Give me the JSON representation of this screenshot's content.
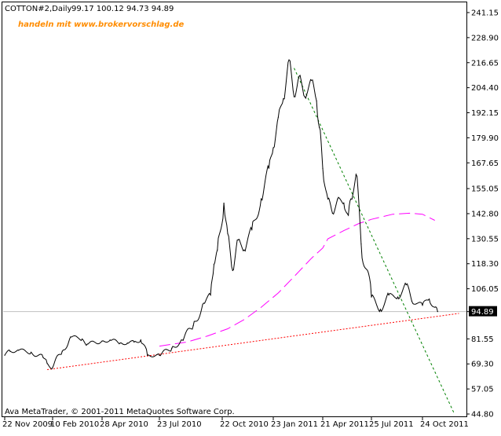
{
  "header": {
    "symbol_line": "COTTON#2,Daily",
    "ohlc_line": "99.17 100.12 94.73 94.89",
    "promo": "handeln mit www.brokervorschlag.de"
  },
  "footer": {
    "copyright": "Ava MetaTrader, © 2001-2011 MetaQuotes Software Corp."
  },
  "colors": {
    "background": "#ffffff",
    "price": "#000000",
    "grid": "#c0c0c0",
    "promo": "#ff8c00",
    "support": "#ff0000",
    "downtrend": "#008000",
    "moving_average": "#ff00ff",
    "current_price_line": "#c0c0c0"
  },
  "chart_data": {
    "type": "line",
    "title": "COTTON#2,Daily",
    "timeframe": "Daily",
    "ohlc_last": {
      "open": 99.17,
      "high": 100.12,
      "low": 94.73,
      "close": 94.89
    },
    "current_price": 94.89,
    "ylim": [
      44.8,
      241.15
    ],
    "y_ticks": [
      "241.15",
      "228.90",
      "216.65",
      "204.40",
      "192.15",
      "179.90",
      "167.65",
      "155.05",
      "142.80",
      "130.55",
      "118.30",
      "106.05",
      "94.89",
      "81.55",
      "69.30",
      "57.05",
      "44.80"
    ],
    "x_ticks": [
      "22 Nov 2009",
      "10 Feb 2010",
      "28 Apr 2010",
      "23 Jul 2010",
      "22 Oct 2010",
      "23 Jan 2011",
      "21 Apr 2011",
      "25 Jul 2011",
      "24 Oct 2011"
    ],
    "grid": false,
    "series": [
      {
        "style": "price",
        "x": [
          "22 Nov 2009",
          "01 Dec 2009",
          "15 Dec 2009",
          "05 Jan 2010",
          "25 Jan 2010",
          "01 Feb 2010",
          "10 Feb 2010",
          "25 Feb 2010",
          "10 Mar 2010",
          "28 Mar 2010",
          "05 Apr 2010",
          "28 Apr 2010",
          "10 May 2010",
          "25 May 2010",
          "05 Jun 2010",
          "15 Jun 2010",
          "25 Jun 2010",
          "05 Jul 2010",
          "23 Jul 2010",
          "10 Aug 2010",
          "25 Aug 2010",
          "10 Sep 2010",
          "25 Sep 2010",
          "05 Oct 2010",
          "10 Oct 2010",
          "15 Oct 2010",
          "25 Oct 2010",
          "01 Nov 2010",
          "10 Nov 2010",
          "20 Nov 2010",
          "01 Dec 2010",
          "15 Dec 2010",
          "01 Jan 2011",
          "15 Jan 2011",
          "23 Jan 2011",
          "01 Feb 2011",
          "10 Feb 2011",
          "20 Feb 2011",
          "01 Mar 2011",
          "10 Mar 2011",
          "20 Mar 2011",
          "01 Apr 2011",
          "10 Apr 2011",
          "15 Apr 2011",
          "21 Apr 2011",
          "01 May 2011",
          "10 May 2011",
          "20 May 2011",
          "01 Jun 2011",
          "10 Jun 2011",
          "15 Jun 2011",
          "25 Jun 2011",
          "05 Jul 2011",
          "25 Jul 2011",
          "10 Aug 2011",
          "25 Aug 2011",
          "10 Sep 2011",
          "25 Sep 2011",
          "05 Oct 2011",
          "24 Oct 2011",
          "05 Nov 2011",
          "15 Nov 2011",
          "20 Nov 2011"
        ],
        "values": [
          73.5,
          75.5,
          76.0,
          75.0,
          72.5,
          69.5,
          67.5,
          75.5,
          82.5,
          81.5,
          79.0,
          80.5,
          81.0,
          79.5,
          79.5,
          80.0,
          81.0,
          73.5,
          73.5,
          77.0,
          81.0,
          88.0,
          99.0,
          103.0,
          118.0,
          125.0,
          148.0,
          133.0,
          115.0,
          130.0,
          125.0,
          135.0,
          150.0,
          165.0,
          175.0,
          190.0,
          199.0,
          218.0,
          200.0,
          210.0,
          200.0,
          208.0,
          198.0,
          185.0,
          165.0,
          150.0,
          143.0,
          150.0,
          148.0,
          142.0,
          150.0,
          162.0,
          128.0,
          102.0,
          96.0,
          103.0,
          102.0,
          108.0,
          100.0,
          98.0,
          101.0,
          97.0,
          94.9
        ]
      },
      {
        "style": "moving-average",
        "x": [
          "23 Jul 2010",
          "01 Sep 2010",
          "01 Oct 2010",
          "01 Nov 2010",
          "01 Dec 2010",
          "01 Jan 2011",
          "01 Feb 2011",
          "01 Mar 2011",
          "01 Apr 2011",
          "21 Apr 2011",
          "01 May 2011",
          "01 Jun 2011",
          "01 Jul 2011",
          "25 Jul 2011",
          "01 Sep 2011",
          "01 Oct 2011",
          "24 Oct 2011",
          "15 Nov 2011"
        ],
        "values": [
          78.0,
          80.0,
          83.0,
          86.5,
          91.0,
          97.0,
          104.0,
          112.0,
          121.0,
          126.0,
          130.5,
          134.5,
          138.0,
          140.0,
          142.5,
          143.0,
          142.5,
          139.5
        ]
      },
      {
        "style": "trendline-support",
        "x": [
          "01 Feb 2010",
          "28 Dec 2011"
        ],
        "values": [
          66.5,
          94.0
        ]
      },
      {
        "style": "trendline-resistance",
        "x": [
          "01 Mar 2011",
          "20 Dec 2011"
        ],
        "values": [
          214.0,
          44.8
        ]
      }
    ]
  }
}
